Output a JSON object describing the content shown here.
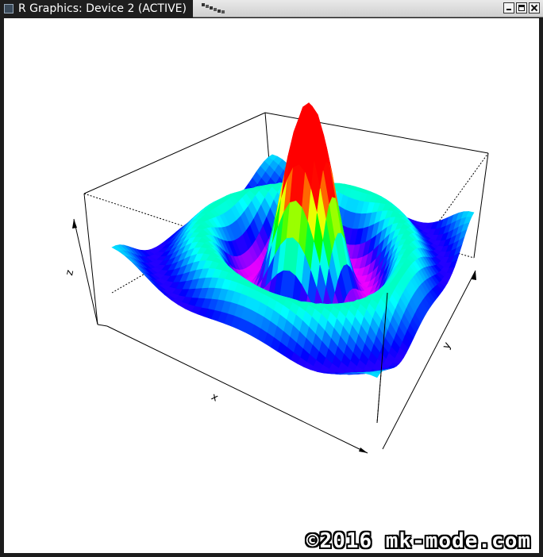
{
  "window": {
    "title": "R Graphics: Device 2 (ACTIVE)",
    "buttons": {
      "minimize": "minimize-icon",
      "maximize": "maximize-icon",
      "close": "close-icon"
    }
  },
  "chart_data": {
    "type": "surface3d",
    "function": "sin(r)/r",
    "x_range": [
      -10,
      10
    ],
    "y_range": [
      -10,
      10
    ],
    "grid_cells": 40,
    "xlabel": "x",
    "ylabel": "y",
    "zlabel": "z",
    "color_scale": "rainbow",
    "box": true
  },
  "watermark": "©2016 mk-mode.com"
}
